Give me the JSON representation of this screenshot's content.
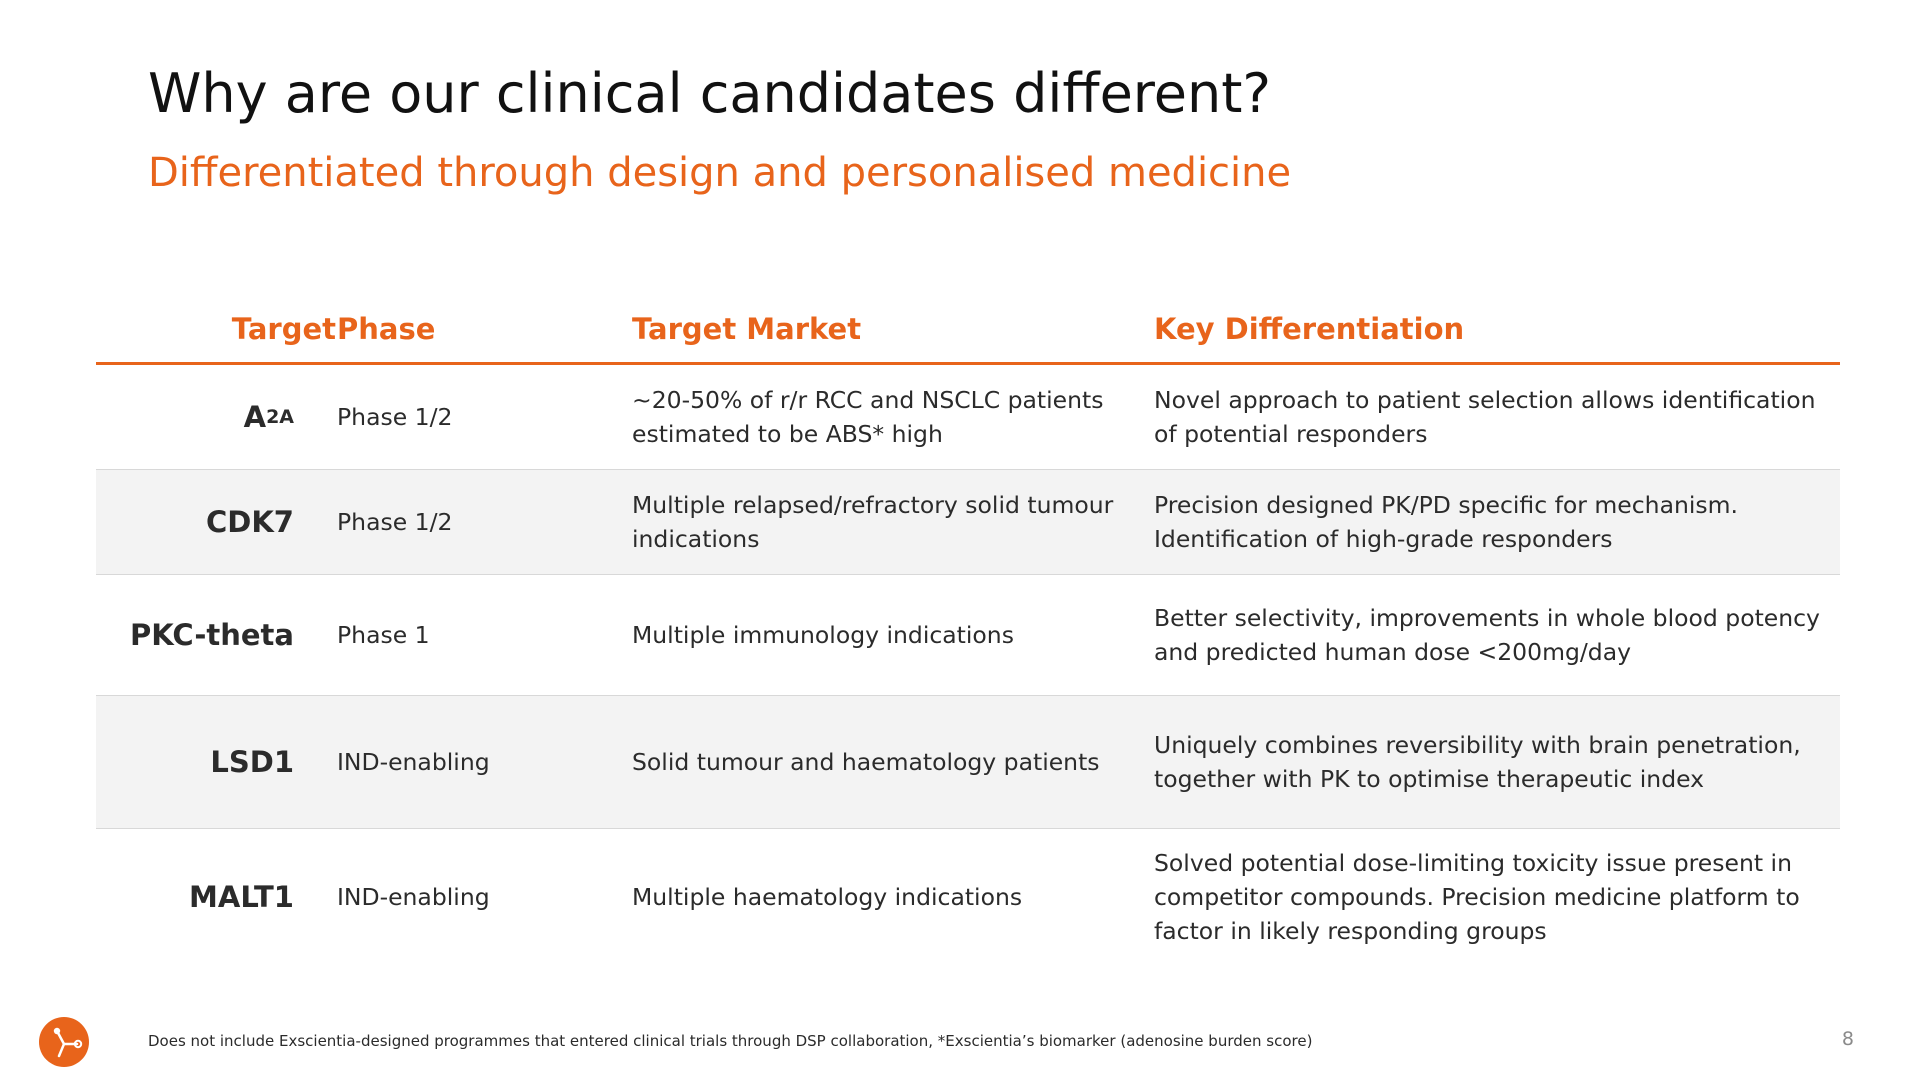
{
  "slide": {
    "title": "Why are our clinical candidates different?",
    "subtitle": "Differentiated through design and personalised medicine",
    "page_number": "8",
    "footnote": "Does not include Exscientia-designed programmes that entered clinical trials through DSP collaboration, *Exscientia’s biomarker (adenosine burden score)"
  },
  "colors": {
    "accent": "#e8641b",
    "row_shade": "#f3f3f3",
    "text": "#2b2b2b"
  },
  "logo": {
    "icon": "exscientia-logo-icon"
  },
  "table": {
    "headers": {
      "target": "Target",
      "phase": "Phase",
      "market": "Target Market",
      "differentiation": "Key Differentiation"
    },
    "rows": [
      {
        "target": "A",
        "target_subscript": "2A",
        "phase": "Phase 1/2",
        "market": "~20-50% of r/r RCC and NSCLC patients estimated to be ABS* high",
        "differentiation": "Novel approach to patient selection allows identification of potential responders"
      },
      {
        "target": "CDK7",
        "phase": "Phase 1/2",
        "market": "Multiple relapsed/refractory solid tumour indications",
        "differentiation": "Precision designed PK/PD specific for mechanism. Identification of high-grade responders"
      },
      {
        "target": "PKC-theta",
        "phase": "Phase 1",
        "market": "Multiple immunology indications",
        "differentiation": "Better selectivity, improvements in whole blood potency and predicted human dose <200mg/day"
      },
      {
        "target": "LSD1",
        "phase": "IND-enabling",
        "market": "Solid tumour and haematology patients",
        "differentiation": "Uniquely combines reversibility with brain penetration, together with PK to optimise therapeutic index"
      },
      {
        "target": "MALT1",
        "phase": "IND-enabling",
        "market": "Multiple haematology indications",
        "differentiation": "Solved potential dose-limiting toxicity issue present in competitor compounds. Precision medicine platform to factor in likely responding groups"
      }
    ]
  }
}
